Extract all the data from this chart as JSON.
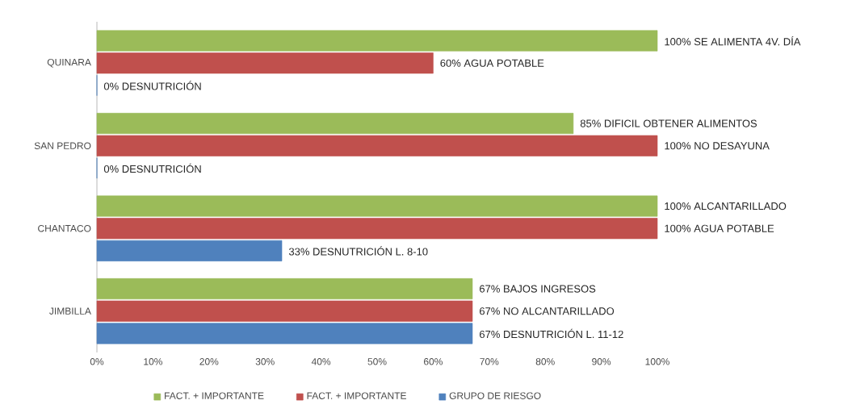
{
  "chart_data": {
    "type": "bar",
    "orientation": "horizontal",
    "categories": [
      "QUINARA",
      "SAN PEDRO",
      "CHANTACO",
      "JIMBILLA"
    ],
    "series": [
      {
        "name": "FACT. + IMPORTANTE",
        "color": "#9bbb59",
        "values": [
          100,
          85,
          100,
          67
        ],
        "value_labels": [
          "100% SE ALIMENTA 4V. DÍA",
          "85% DIFICIL OBTENER ALIMENTOS",
          "100% ALCANTARILLADO",
          "67% BAJOS INGRESOS"
        ]
      },
      {
        "name": "FACT. + IMPORTANTE",
        "color": "#c0504d",
        "values": [
          60,
          100,
          100,
          67
        ],
        "value_labels": [
          "60% AGUA POTABLE",
          "100% NO DESAYUNA",
          "100% AGUA POTABLE",
          "67% NO ALCANTARILLADO"
        ]
      },
      {
        "name": "GRUPO DE RIESGO",
        "color": "#4f81bd",
        "values": [
          0,
          0,
          33,
          67
        ],
        "value_labels": [
          "0% DESNUTRICIÓN",
          "0% DESNUTRICIÓN",
          "33% DESNUTRICIÓN L. 8-10",
          "67% DESNUTRICIÓN L. 11-12"
        ]
      }
    ],
    "xlim": [
      0,
      100
    ],
    "xticks": [
      {
        "value": 0,
        "label": "0%"
      },
      {
        "value": 10,
        "label": "10%"
      },
      {
        "value": 20,
        "label": "20%"
      },
      {
        "value": 30,
        "label": "30%"
      },
      {
        "value": 40,
        "label": "40%"
      },
      {
        "value": 50,
        "label": "50%"
      },
      {
        "value": 60,
        "label": "60%"
      },
      {
        "value": 70,
        "label": "70%"
      },
      {
        "value": 80,
        "label": "80%"
      },
      {
        "value": 90,
        "label": "90%"
      },
      {
        "value": 100,
        "label": "100%"
      }
    ],
    "legend": "bottom"
  }
}
